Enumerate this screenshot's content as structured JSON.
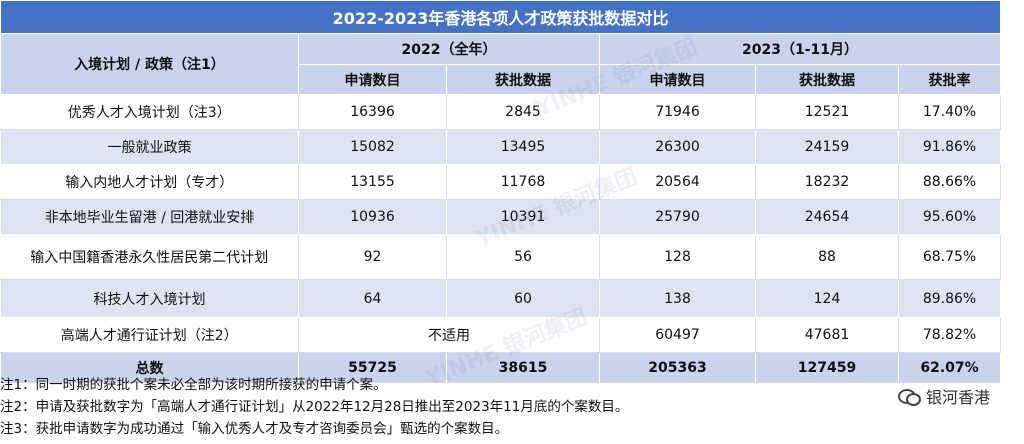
{
  "title": "2022-2023年香港各项人才政策获批数据对比",
  "headers": {
    "policy": "入境计划 / 政策（注1）",
    "year2022": "2022（全年）",
    "year2023": "2023（1-11月）",
    "applications": "申请数目",
    "approvals": "获批数据",
    "approval_rate": "获批率"
  },
  "rows": [
    {
      "name": "优秀人才入境计划（注3）",
      "a2022": "16396",
      "b2022": "2845",
      "a2023": "71946",
      "b2023": "12521",
      "rate": "17.40%"
    },
    {
      "name": "一般就业政策",
      "a2022": "15082",
      "b2022": "13495",
      "a2023": "26300",
      "b2023": "24159",
      "rate": "91.86%"
    },
    {
      "name": "输入内地人才计划（专才）",
      "a2022": "13155",
      "b2022": "11768",
      "a2023": "20564",
      "b2023": "18232",
      "rate": "88.66%"
    },
    {
      "name": "非本地毕业生留港 / 回港就业安排",
      "a2022": "10936",
      "b2022": "10391",
      "a2023": "25790",
      "b2023": "24654",
      "rate": "95.60%"
    },
    {
      "name": "输入中国籍香港永久性居民第二代计划",
      "a2022": "92",
      "b2022": "56",
      "a2023": "128",
      "b2023": "88",
      "rate": "68.75%"
    },
    {
      "name": "科技人才入境计划",
      "a2022": "64",
      "b2022": "60",
      "a2023": "138",
      "b2023": "124",
      "rate": "89.86%"
    },
    {
      "name": "高端人才通行证计划（注2）",
      "na": "不适用",
      "a2023": "60497",
      "b2023": "47681",
      "rate": "78.82%"
    }
  ],
  "total": {
    "name": "总数",
    "a2022": "55725",
    "b2022": "38615",
    "a2023": "205363",
    "b2023": "127459",
    "rate": "62.07%"
  },
  "notes": [
    "注1：同一时期的获批个案未必全部为该时期所接获的申请个案。",
    "注2：申请及获批数字为「高端人才通行证计划」从2022年12月28日推出至2023年11月底的个案数目。",
    "注3：获批申请数字为成功通过「输入优秀人才及专才咨询委员会」甄选的个案数目。"
  ],
  "brand": "银河香港",
  "watermark": "YINHE 银河集团",
  "icons": {
    "brand": "wechat-icon"
  }
}
